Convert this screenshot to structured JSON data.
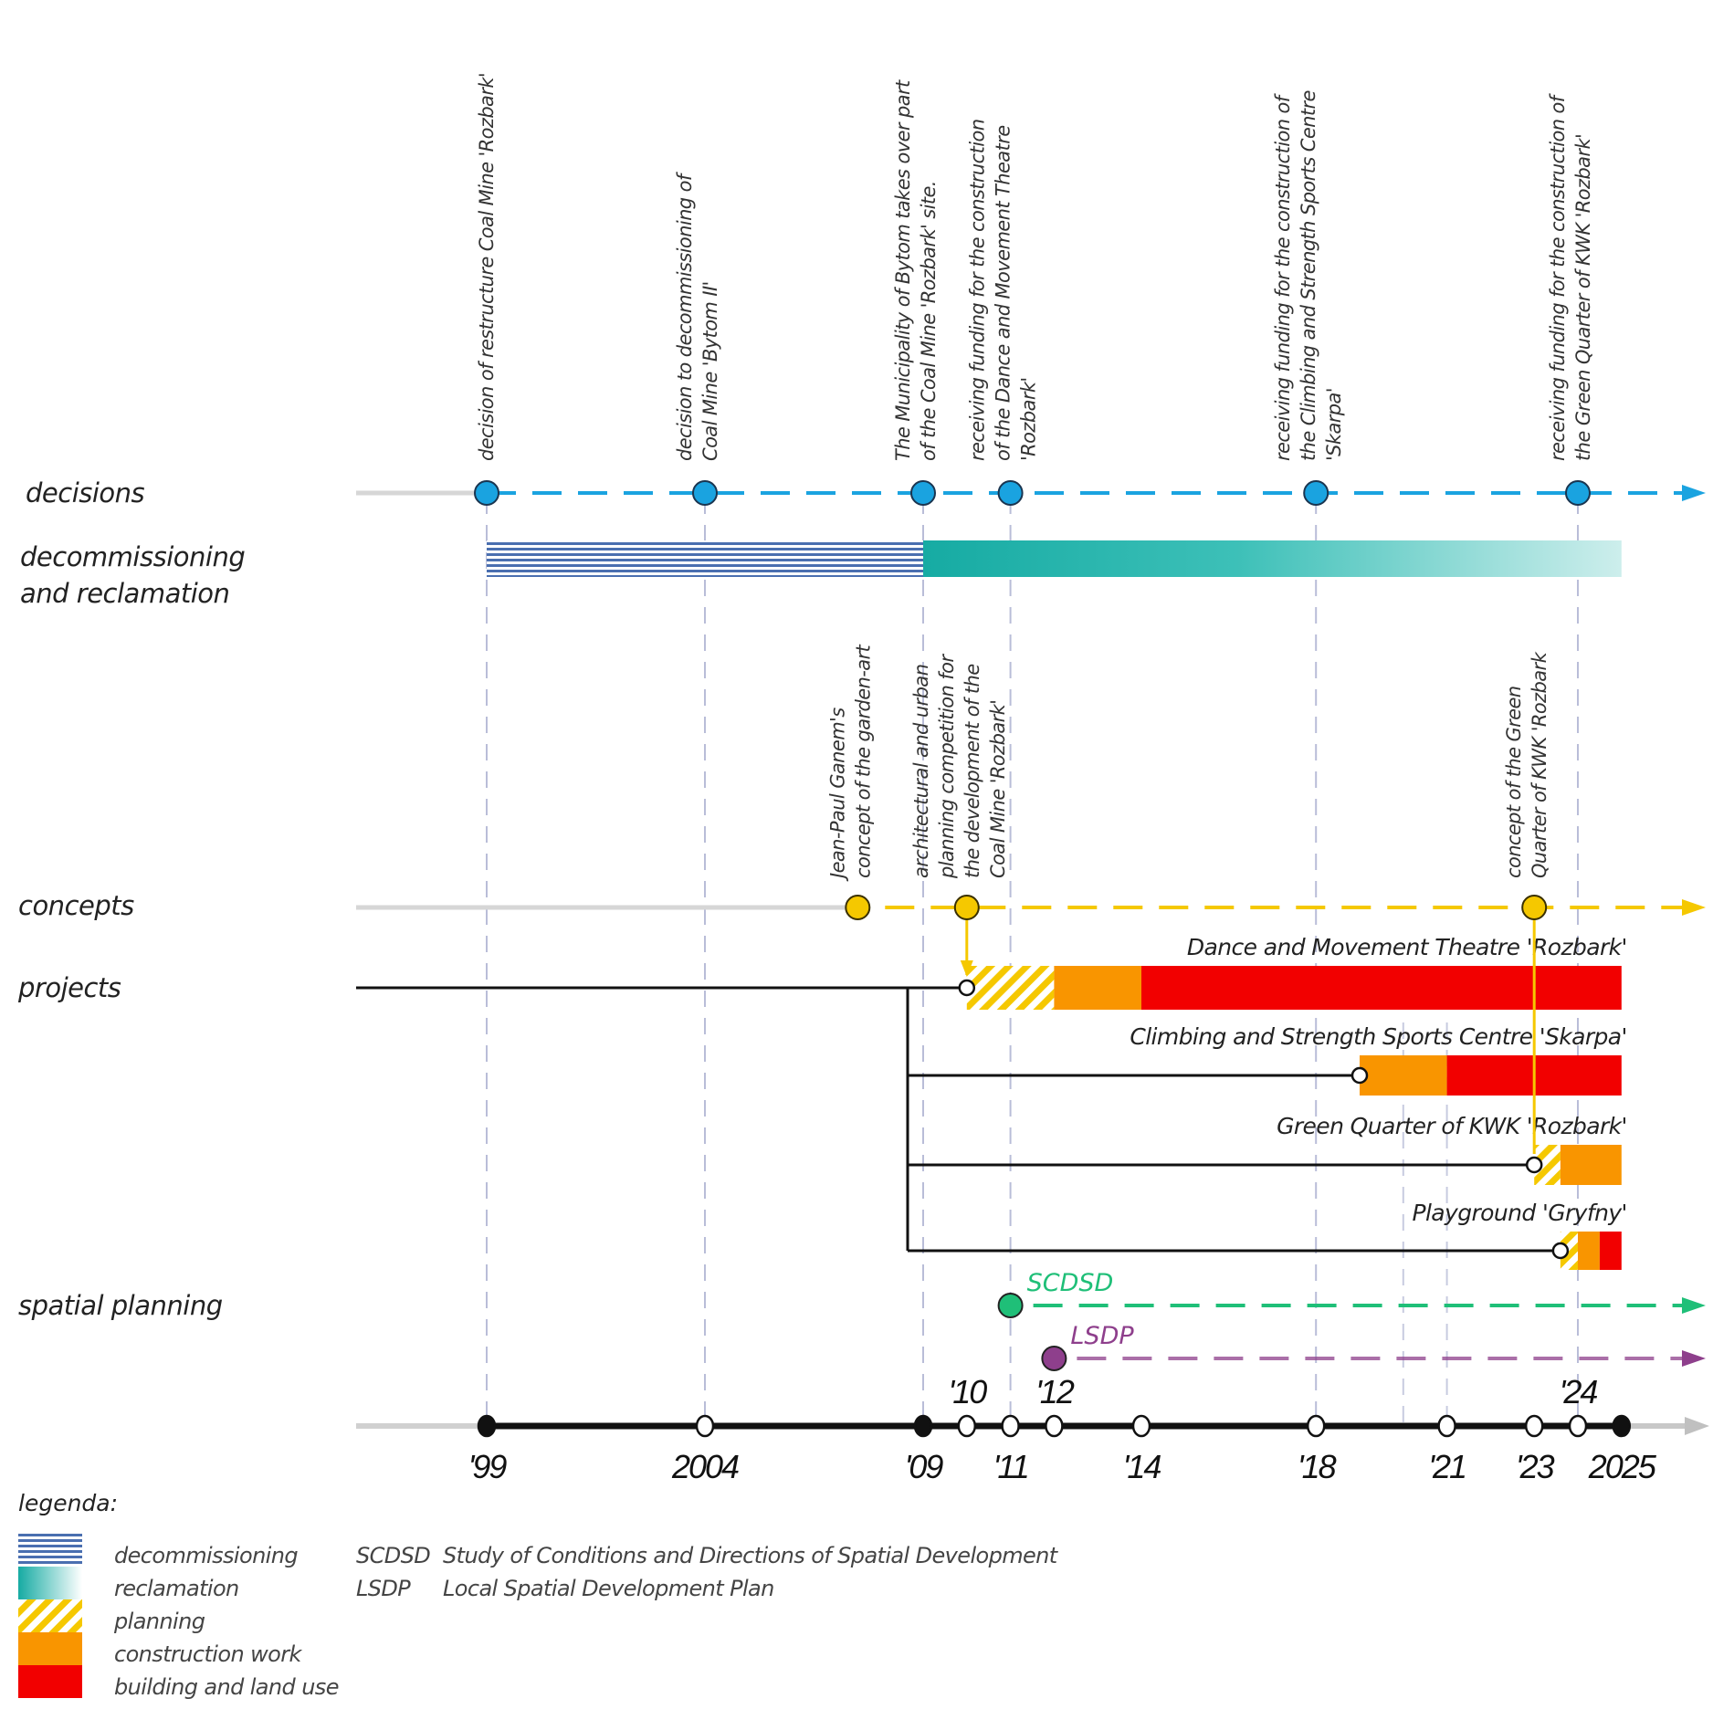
{
  "row_labels": {
    "decisions": "decisions",
    "decommissioning_1": "decommissioning",
    "decommissioning_2": "and reclamation",
    "concepts": "concepts",
    "projects": "projects",
    "spatial_planning": "spatial planning"
  },
  "colors": {
    "decisions": "#1aa3e0",
    "decommissioning": "#4a6fb0",
    "reclamation": "#16aba3",
    "planning": "#f5c800",
    "construction": "#f99500",
    "building": "#f20000",
    "scdsd": "#1fbf78",
    "lsdp": "#8e3f8c",
    "axis": "#111111"
  },
  "decisions": [
    {
      "year": 1999,
      "lines": [
        "decision of restructure Coal Mine  'Rozbark'"
      ]
    },
    {
      "year": 2004,
      "lines": [
        "decision to decommissioning of",
        "Coal Mine 'Bytom II'"
      ]
    },
    {
      "year": 2009,
      "lines": [
        "The Municipality of Bytom takes over part",
        "of the Coal Mine 'Rozbark' site."
      ]
    },
    {
      "year": 2011,
      "lines": [
        "receiving funding for the construction",
        "of  the Dance and Movement Theatre",
        "'Rozbark'"
      ]
    },
    {
      "year": 2018,
      "lines": [
        "receiving funding for the construction of",
        "the Climbing and Strength Sports Centre",
        "'Skarpa'"
      ]
    },
    {
      "year": 2024,
      "lines": [
        "receiving funding for the construction of",
        "the Green Quarter of KWK 'Rozbark'"
      ]
    }
  ],
  "decommissioning_period": {
    "decommissioning": [
      1999,
      2009
    ],
    "reclamation": [
      2009,
      2025
    ]
  },
  "concepts": [
    {
      "year": 2007.5,
      "lines": [
        "Jean-Paul Ganem's",
        "concept of the garden-art"
      ]
    },
    {
      "year": 2010,
      "lines": [
        "architectural and urban",
        "planning competition for",
        "the development of the",
        "Coal Mine 'Rozbark'"
      ]
    },
    {
      "year": 2023,
      "lines": [
        "concept of the Green",
        "Quarter of KWK 'Rozbark"
      ]
    }
  ],
  "projects": [
    {
      "name": "Dance and Movement Theatre 'Rozbark'",
      "start": 2010,
      "planning": [
        2010,
        2012
      ],
      "construction": [
        2012,
        2014
      ],
      "building": [
        2014,
        2025
      ]
    },
    {
      "name": "Climbing and Strength Sports Centre 'Skarpa'",
      "start": 2019,
      "planning": null,
      "construction": [
        2019,
        2021
      ],
      "building": [
        2021,
        2025
      ]
    },
    {
      "name": "Green Quarter of KWK 'Rozbark'",
      "start": 2023,
      "planning": [
        2023,
        2023.6
      ],
      "construction": [
        2023.6,
        2025
      ],
      "building": null
    },
    {
      "name": "Playground 'Gryfny'",
      "start": 2023.6,
      "planning": [
        2023.6,
        2024
      ],
      "construction": [
        2024,
        2024.5
      ],
      "building": [
        2024.5,
        2025
      ]
    }
  ],
  "spatial_planning": [
    {
      "abbr": "SCDSD",
      "year": 2011
    },
    {
      "abbr": "LSDP",
      "year": 2012
    }
  ],
  "axis": {
    "ticks": [
      {
        "year": 1999,
        "label": "'99",
        "pos": "below",
        "filled": true
      },
      {
        "year": 2004,
        "label": "2004",
        "pos": "below",
        "filled": false
      },
      {
        "year": 2009,
        "label": "'09",
        "pos": "below",
        "filled": true
      },
      {
        "year": 2010,
        "label": "'10",
        "pos": "above",
        "filled": false
      },
      {
        "year": 2011,
        "label": "'11",
        "pos": "below",
        "filled": false
      },
      {
        "year": 2012,
        "label": "'12",
        "pos": "above",
        "filled": false
      },
      {
        "year": 2014,
        "label": "'14",
        "pos": "below",
        "filled": false
      },
      {
        "year": 2018,
        "label": "'18",
        "pos": "below",
        "filled": false
      },
      {
        "year": 2021,
        "label": "'21",
        "pos": "below",
        "filled": false
      },
      {
        "year": 2023,
        "label": "'23",
        "pos": "below",
        "filled": false
      },
      {
        "year": 2024,
        "label": "'24",
        "pos": "above",
        "filled": false
      },
      {
        "year": 2025,
        "label": "2025",
        "pos": "below",
        "filled": true
      }
    ],
    "guide_years": [
      1999,
      2004,
      2009,
      2011,
      2018,
      2024
    ],
    "lower_guide_years": [
      2020,
      2021
    ]
  },
  "legend": {
    "title": "legenda:",
    "items": [
      "decommissioning",
      "reclamation",
      "planning",
      "construction work",
      "building and land use"
    ],
    "abbreviations": [
      {
        "abbr": "SCDSD",
        "text": "Study of Conditions and Directions of Spatial Development"
      },
      {
        "abbr": "LSDP",
        "text": "Local Spatial Development Plan"
      }
    ]
  }
}
